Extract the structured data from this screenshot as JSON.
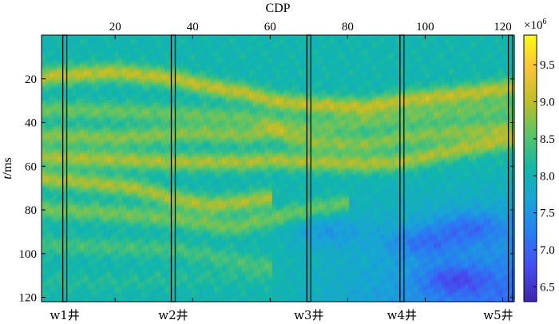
{
  "chart_data": {
    "type": "heatmap",
    "title": "",
    "xlabel": "CDP",
    "ylabel_italic": "t",
    "ylabel_rest": "/ms",
    "xlim": [
      1,
      123
    ],
    "ylim": [
      0,
      122
    ],
    "y_inverted": true,
    "x_axis_position": "top",
    "x_ticks": [
      20,
      40,
      60,
      80,
      100,
      120
    ],
    "y_ticks": [
      20,
      40,
      60,
      80,
      100,
      120
    ],
    "colorbar": {
      "range": [
        6.3,
        9.9
      ],
      "ticks": [
        "6.5",
        "7.0",
        "7.5",
        "8.0",
        "8.5",
        "9.0",
        "9.5"
      ],
      "exponent_base": "×10",
      "exponent_power": "6",
      "colormap": "parula"
    },
    "wells": [
      {
        "name": "w1井",
        "cdp": 7
      },
      {
        "name": "w2井",
        "cdp": 35
      },
      {
        "name": "w3井",
        "cdp": 70
      },
      {
        "name": "w4井",
        "cdp": 94
      },
      {
        "name": "w5井",
        "cdp": 122
      }
    ],
    "horizons": [
      {
        "cdp": [
          1,
          10,
          20,
          35,
          45,
          55,
          60,
          70,
          85,
          94,
          110,
          123
        ],
        "t": [
          19,
          18,
          17,
          20,
          24,
          27,
          30,
          32,
          33,
          30,
          27,
          24
        ],
        "value": 9.0
      },
      {
        "cdp": [
          1,
          20,
          35,
          55,
          60,
          70,
          85,
          94,
          110,
          123
        ],
        "t": [
          34,
          35,
          36,
          38,
          40,
          42,
          40,
          38,
          35,
          33
        ],
        "value": 8.6
      },
      {
        "cdp": [
          1,
          20,
          40,
          55,
          60,
          70,
          85,
          94,
          110,
          123
        ],
        "t": [
          46,
          47,
          45,
          46,
          44,
          49,
          50,
          47,
          44,
          42
        ],
        "value": 8.75
      },
      {
        "cdp": [
          1,
          20,
          35,
          55,
          60,
          70,
          85,
          94,
          110,
          123
        ],
        "t": [
          56,
          57,
          58,
          58,
          57,
          58,
          59,
          58,
          52,
          48
        ],
        "value": 8.9
      },
      {
        "cdp": [
          1,
          10,
          25,
          35,
          45,
          55,
          60
        ],
        "t": [
          66,
          67,
          70,
          75,
          78,
          76,
          74
        ],
        "value": 8.9
      },
      {
        "cdp": [
          1,
          15,
          35,
          50,
          60,
          70,
          80
        ],
        "t": [
          80,
          81,
          84,
          88,
          84,
          80,
          77
        ],
        "value": 8.65
      },
      {
        "cdp": [
          1,
          15,
          35,
          50,
          60
        ],
        "t": [
          96,
          97,
          98,
          103,
          106
        ],
        "value": 8.4
      },
      {
        "cdp": [
          1,
          20,
          40,
          60
        ],
        "t": [
          113,
          113,
          111,
          110
        ],
        "value": 8.2
      }
    ],
    "low_zones": [
      {
        "cdp": 75,
        "t": 90,
        "value": 7.2
      },
      {
        "cdp": 100,
        "t": 95,
        "value": 7.0
      },
      {
        "cdp": 112,
        "t": 88,
        "value": 7.0
      },
      {
        "cdp": 108,
        "t": 112,
        "value": 6.9
      }
    ]
  }
}
